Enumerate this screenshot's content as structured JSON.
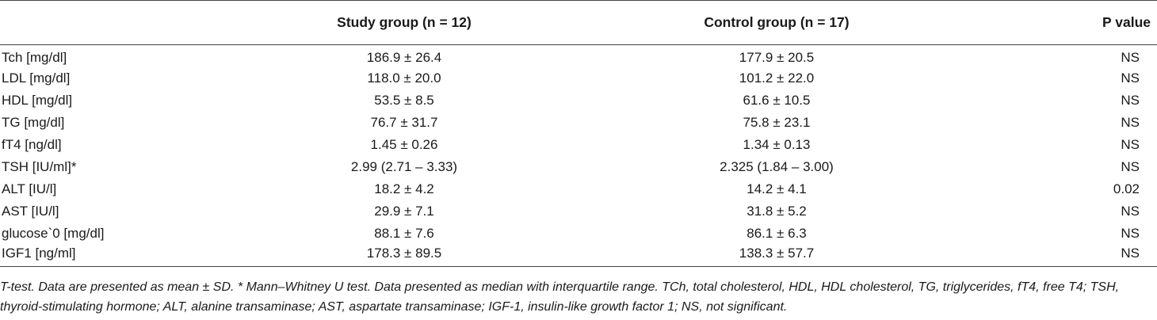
{
  "table": {
    "headers": {
      "parameter": "",
      "study": "Study group (n = 12)",
      "control": "Control group (n = 17)",
      "p_value": "P value"
    },
    "rows": [
      {
        "parameter": "Tch [mg/dl]",
        "study": "186.9 ± 26.4",
        "control": "177.9 ± 20.5",
        "p_value": "NS"
      },
      {
        "parameter": "LDL [mg/dl]",
        "study": "118.0 ± 20.0",
        "control": "101.2 ± 22.0",
        "p_value": "NS"
      },
      {
        "parameter": "HDL [mg/dl]",
        "study": "53.5 ± 8.5",
        "control": "61.6 ± 10.5",
        "p_value": "NS"
      },
      {
        "parameter": "TG [mg/dl]",
        "study": "76.7 ± 31.7",
        "control": "75.8 ± 23.1",
        "p_value": "NS"
      },
      {
        "parameter": "fT4 [ng/dl]",
        "study": "1.45 ± 0.26",
        "control": "1.34 ± 0.13",
        "p_value": "NS"
      },
      {
        "parameter": "TSH [IU/ml]*",
        "study": "2.99 (2.71 – 3.33)",
        "control": "2.325 (1.84 – 3.00)",
        "p_value": "NS"
      },
      {
        "parameter": "ALT [IU/l]",
        "study": "18.2 ± 4.2",
        "control": "14.2 ± 4.1",
        "p_value": "0.02"
      },
      {
        "parameter": "AST [IU/l]",
        "study": "29.9 ± 7.1",
        "control": "31.8 ± 5.2",
        "p_value": "NS"
      },
      {
        "parameter": "glucose`0 [mg/dl]",
        "study": "88.1 ± 7.6",
        "control": "86.1 ± 6.3",
        "p_value": "NS"
      },
      {
        "parameter": "IGF1 [ng/ml]",
        "study": "178.3 ± 89.5",
        "control": "138.3 ± 57.7",
        "p_value": "NS"
      }
    ]
  },
  "footnote": "T-test. Data are presented as mean ± SD. * Mann–Whitney U test. Data presented as median with interquartile range. TCh, total cholesterol, HDL, HDL cholesterol, TG, triglycerides, fT4, free T4; TSH, thyroid-stimulating hormone; ALT, alanine transaminase; AST, aspartate transaminase; IGF-1, insulin-like growth factor 1; NS, not significant."
}
